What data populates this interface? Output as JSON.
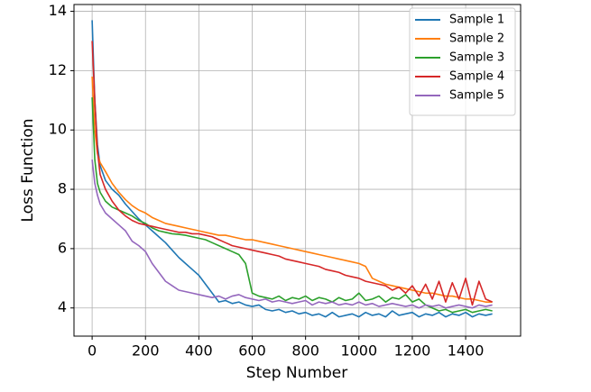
{
  "chart_data": {
    "type": "line",
    "x_label": "Step Number",
    "y_label": "Loss Function",
    "x": [
      0,
      10,
      20,
      30,
      50,
      75,
      100,
      125,
      150,
      175,
      200,
      225,
      250,
      275,
      300,
      325,
      350,
      375,
      400,
      425,
      450,
      475,
      500,
      525,
      550,
      575,
      600,
      625,
      650,
      675,
      700,
      725,
      750,
      775,
      800,
      825,
      850,
      875,
      900,
      925,
      950,
      975,
      1000,
      1025,
      1050,
      1075,
      1100,
      1125,
      1150,
      1175,
      1200,
      1225,
      1250,
      1275,
      1300,
      1325,
      1350,
      1375,
      1400,
      1425,
      1450,
      1475,
      1500
    ],
    "series": [
      {
        "name": "Sample 1",
        "color": "#1f77b4",
        "values": [
          13.7,
          11,
          9.5,
          8.8,
          8.3,
          8.0,
          7.8,
          7.5,
          7.25,
          7.0,
          6.8,
          6.6,
          6.4,
          6.2,
          5.95,
          5.7,
          5.5,
          5.3,
          5.1,
          4.8,
          4.5,
          4.2,
          4.25,
          4.15,
          4.2,
          4.1,
          4.05,
          4.1,
          3.95,
          3.9,
          3.95,
          3.85,
          3.9,
          3.8,
          3.85,
          3.75,
          3.8,
          3.7,
          3.85,
          3.7,
          3.75,
          3.8,
          3.7,
          3.85,
          3.75,
          3.8,
          3.7,
          3.9,
          3.75,
          3.8,
          3.85,
          3.7,
          3.8,
          3.75,
          3.85,
          3.7,
          3.8,
          3.75,
          3.85,
          3.7,
          3.8,
          3.75,
          3.8
        ]
      },
      {
        "name": "Sample 2",
        "color": "#ff7f0e",
        "values": [
          11.8,
          10,
          9.2,
          8.9,
          8.6,
          8.2,
          7.9,
          7.65,
          7.45,
          7.3,
          7.2,
          7.05,
          6.95,
          6.85,
          6.8,
          6.75,
          6.7,
          6.65,
          6.6,
          6.55,
          6.5,
          6.45,
          6.45,
          6.4,
          6.35,
          6.3,
          6.3,
          6.25,
          6.2,
          6.15,
          6.1,
          6.05,
          6.0,
          5.95,
          5.9,
          5.85,
          5.8,
          5.75,
          5.7,
          5.65,
          5.6,
          5.55,
          5.5,
          5.4,
          5.0,
          4.9,
          4.8,
          4.75,
          4.7,
          4.65,
          4.6,
          4.55,
          4.5,
          4.5,
          4.45,
          4.4,
          4.4,
          4.35,
          4.3,
          4.3,
          4.25,
          4.2,
          4.2
        ]
      },
      {
        "name": "Sample 3",
        "color": "#2ca02c",
        "values": [
          11.1,
          9,
          8.2,
          7.9,
          7.6,
          7.4,
          7.3,
          7.2,
          7.1,
          6.95,
          6.85,
          6.7,
          6.6,
          6.55,
          6.5,
          6.48,
          6.45,
          6.4,
          6.35,
          6.3,
          6.2,
          6.1,
          6.0,
          5.9,
          5.8,
          5.5,
          4.5,
          4.4,
          4.35,
          4.3,
          4.4,
          4.25,
          4.35,
          4.3,
          4.4,
          4.25,
          4.35,
          4.3,
          4.2,
          4.35,
          4.25,
          4.3,
          4.5,
          4.25,
          4.3,
          4.4,
          4.2,
          4.35,
          4.3,
          4.45,
          4.2,
          4.3,
          4.1,
          4.0,
          3.9,
          3.95,
          3.85,
          3.9,
          3.95,
          3.85,
          3.9,
          3.95,
          3.9
        ]
      },
      {
        "name": "Sample 4",
        "color": "#d62728",
        "values": [
          13,
          11,
          9.3,
          8.5,
          8.0,
          7.6,
          7.3,
          7.1,
          6.95,
          6.85,
          6.8,
          6.75,
          6.7,
          6.65,
          6.6,
          6.55,
          6.55,
          6.5,
          6.5,
          6.45,
          6.4,
          6.3,
          6.2,
          6.1,
          6.05,
          6.0,
          5.95,
          5.9,
          5.85,
          5.8,
          5.75,
          5.65,
          5.6,
          5.55,
          5.5,
          5.45,
          5.4,
          5.3,
          5.25,
          5.2,
          5.1,
          5.05,
          5.0,
          4.9,
          4.85,
          4.8,
          4.75,
          4.6,
          4.7,
          4.5,
          4.75,
          4.4,
          4.8,
          4.3,
          4.9,
          4.2,
          4.85,
          4.3,
          5.0,
          4.1,
          4.9,
          4.3,
          4.2
        ]
      },
      {
        "name": "Sample 5",
        "color": "#9467bd",
        "values": [
          9,
          8.2,
          7.8,
          7.5,
          7.2,
          7.0,
          6.8,
          6.6,
          6.25,
          6.1,
          5.9,
          5.5,
          5.2,
          4.9,
          4.75,
          4.6,
          4.55,
          4.5,
          4.45,
          4.4,
          4.35,
          4.4,
          4.3,
          4.4,
          4.45,
          4.35,
          4.3,
          4.25,
          4.3,
          4.2,
          4.25,
          4.2,
          4.15,
          4.2,
          4.25,
          4.1,
          4.2,
          4.15,
          4.2,
          4.1,
          4.15,
          4.1,
          4.2,
          4.1,
          4.15,
          4.05,
          4.1,
          4.15,
          4.1,
          4.05,
          4.1,
          4.0,
          4.1,
          4.05,
          4.1,
          4.0,
          4.05,
          4.1,
          4.05,
          4.0,
          4.1,
          4.05,
          4.1
        ]
      }
    ],
    "xlim": [
      -68,
      1606
    ],
    "ylim": [
      3.05,
      14.23
    ],
    "xticks": [
      0,
      200,
      400,
      600,
      800,
      1000,
      1200,
      1400
    ],
    "yticks": [
      4,
      6,
      8,
      10,
      12,
      14
    ],
    "grid": true,
    "legend": "upper right"
  }
}
